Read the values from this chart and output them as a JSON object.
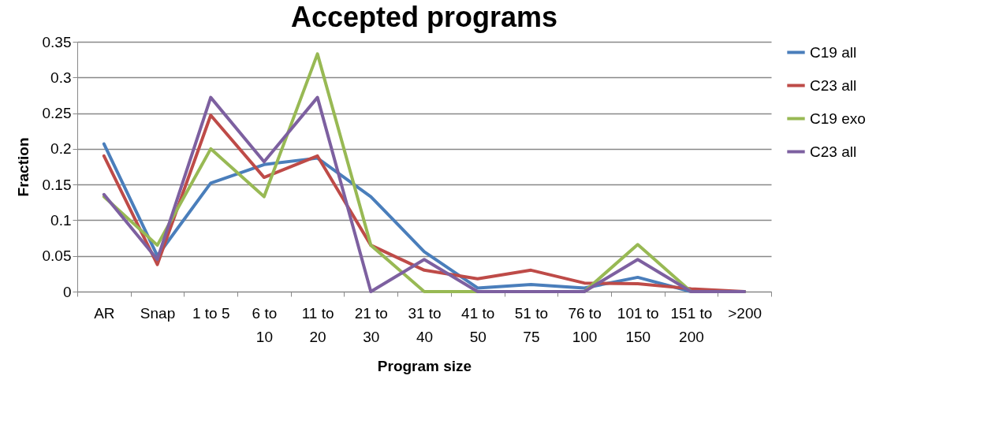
{
  "chart_data": {
    "type": "line",
    "title": "Accepted programs",
    "xlabel": "Program size",
    "ylabel": "Fraction",
    "categories": [
      "AR",
      "Snap",
      "1 to 5",
      "6 to 10",
      "11 to 20",
      "21 to 30",
      "31 to 40",
      "41 to 50",
      "51 to 75",
      "76 to 100",
      "101 to 150",
      "151 to 200",
      ">200"
    ],
    "series": [
      {
        "name": "C19 all",
        "color": "#4a7ebb",
        "values": [
          0.207,
          0.05,
          0.152,
          0.178,
          0.187,
          0.133,
          0.056,
          0.005,
          0.01,
          0.005,
          0.02,
          0,
          0
        ]
      },
      {
        "name": "C23 all",
        "color": "#be4b48",
        "values": [
          0.19,
          0.038,
          0.247,
          0.16,
          0.19,
          0.065,
          0.03,
          0.018,
          0.03,
          0.012,
          0.011,
          0.004,
          0
        ]
      },
      {
        "name": "C19 exo",
        "color": "#98b954",
        "values": [
          0.133,
          0.065,
          0.2,
          0.133,
          0.333,
          0.065,
          0,
          0,
          0,
          0,
          0.066,
          0,
          0
        ]
      },
      {
        "name": "C23 all",
        "color": "#7d60a0",
        "values": [
          0.136,
          0.045,
          0.272,
          0.182,
          0.272,
          0,
          0.045,
          0,
          0,
          0,
          0.045,
          0,
          0
        ]
      }
    ],
    "ylim": [
      0,
      0.35
    ],
    "yticks": [
      0,
      0.05,
      0.1,
      0.15,
      0.2,
      0.25,
      0.3,
      0.35
    ],
    "grid": "y",
    "legend": "right",
    "marker": "none",
    "line_style": "solid"
  }
}
